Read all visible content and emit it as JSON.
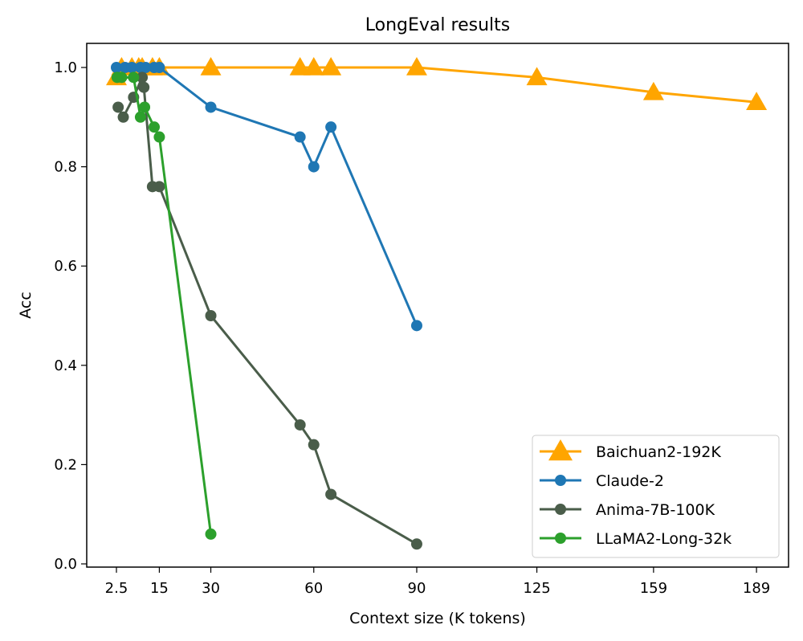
{
  "chart_data": {
    "type": "line",
    "title": "LongEval results",
    "xlabel": "Context size (K tokens)",
    "ylabel": "Acc",
    "xticks": [
      2.5,
      15,
      30,
      60,
      90,
      125,
      159,
      189
    ],
    "xtick_labels": [
      "2.5",
      "15",
      "30",
      "60",
      "90",
      "125",
      "159",
      "189"
    ],
    "yticks": [
      0.0,
      0.2,
      0.4,
      0.6,
      0.8,
      1.0
    ],
    "ytick_labels": [
      "0.0",
      "0.2",
      "0.4",
      "0.6",
      "0.8",
      "1.0"
    ],
    "ylim": [
      -0.008,
      1.048
    ],
    "grid": false,
    "legend_placement": "lower-right",
    "series": [
      {
        "name": "Baichuan2-192K",
        "color": "#ffa500",
        "marker": "triangle",
        "x": [
          2.5,
          4,
          7,
          9,
          10,
          13,
          15,
          30,
          56,
          60,
          65,
          90,
          125,
          159,
          189
        ],
        "y": [
          0.98,
          1.0,
          1.0,
          1.0,
          1.0,
          1.0,
          1.0,
          1.0,
          1.0,
          1.0,
          1.0,
          1.0,
          0.98,
          0.95,
          0.93
        ]
      },
      {
        "name": "Claude-2",
        "color": "#1f77b4",
        "marker": "circle",
        "x": [
          2.5,
          5,
          7,
          9.5,
          11,
          13.5,
          15,
          30,
          56,
          60,
          65,
          90
        ],
        "y": [
          1.0,
          1.0,
          1.0,
          1.0,
          1.0,
          1.0,
          1.0,
          0.92,
          0.86,
          0.8,
          0.88,
          0.48
        ]
      },
      {
        "name": "Anima-7B-100K",
        "color": "#4a5d4a",
        "marker": "circle",
        "x": [
          3,
          4.5,
          7.5,
          10,
          10.5,
          13,
          15,
          30,
          56,
          60,
          65,
          90
        ],
        "y": [
          0.92,
          0.9,
          0.94,
          0.98,
          0.96,
          0.76,
          0.76,
          0.5,
          0.28,
          0.24,
          0.14,
          0.04
        ]
      },
      {
        "name": "LLaMA2-Long-32k",
        "color": "#2ca02c",
        "marker": "circle",
        "x": [
          2.7,
          4,
          7.5,
          9.5,
          10.7,
          13.5,
          15,
          30
        ],
        "y": [
          0.98,
          0.98,
          0.98,
          0.9,
          0.92,
          0.88,
          0.86,
          0.06
        ]
      }
    ]
  }
}
